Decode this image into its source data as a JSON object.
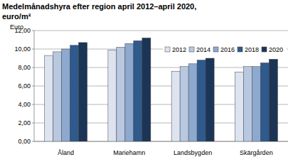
{
  "chart_data": {
    "type": "bar",
    "title": "Medelmånadshyra efter region april 2012–april 2020, euro/m²",
    "y_label": "Euro",
    "categories": [
      "Åland",
      "Mariehamn",
      "Landsbygden",
      "Skärgården"
    ],
    "series": [
      {
        "name": "2012",
        "color": "#dde3f0",
        "values": [
          9.3,
          9.9,
          7.6,
          7.5
        ]
      },
      {
        "name": "2014",
        "color": "#b8c8e0",
        "values": [
          9.7,
          10.2,
          8.1,
          8.1
        ]
      },
      {
        "name": "2016",
        "color": "#8ea9cf",
        "values": [
          10.0,
          10.6,
          8.4,
          8.1
        ]
      },
      {
        "name": "2018",
        "color": "#2e5a8e",
        "values": [
          10.4,
          10.9,
          8.8,
          8.5
        ]
      },
      {
        "name": "2020",
        "color": "#1c3556",
        "values": [
          10.7,
          11.2,
          9.0,
          8.9
        ]
      }
    ],
    "ylim": [
      0,
      12
    ],
    "yticks": [
      {
        "value": 0,
        "label": "0,00"
      },
      {
        "value": 2,
        "label": "2,00"
      },
      {
        "value": 4,
        "label": "4,00"
      },
      {
        "value": 6,
        "label": "6,00"
      },
      {
        "value": 8,
        "label": "8,00"
      },
      {
        "value": 10,
        "label": "10,00"
      },
      {
        "value": 12,
        "label": "12,00"
      }
    ],
    "grid": true,
    "legend": "upper right"
  }
}
